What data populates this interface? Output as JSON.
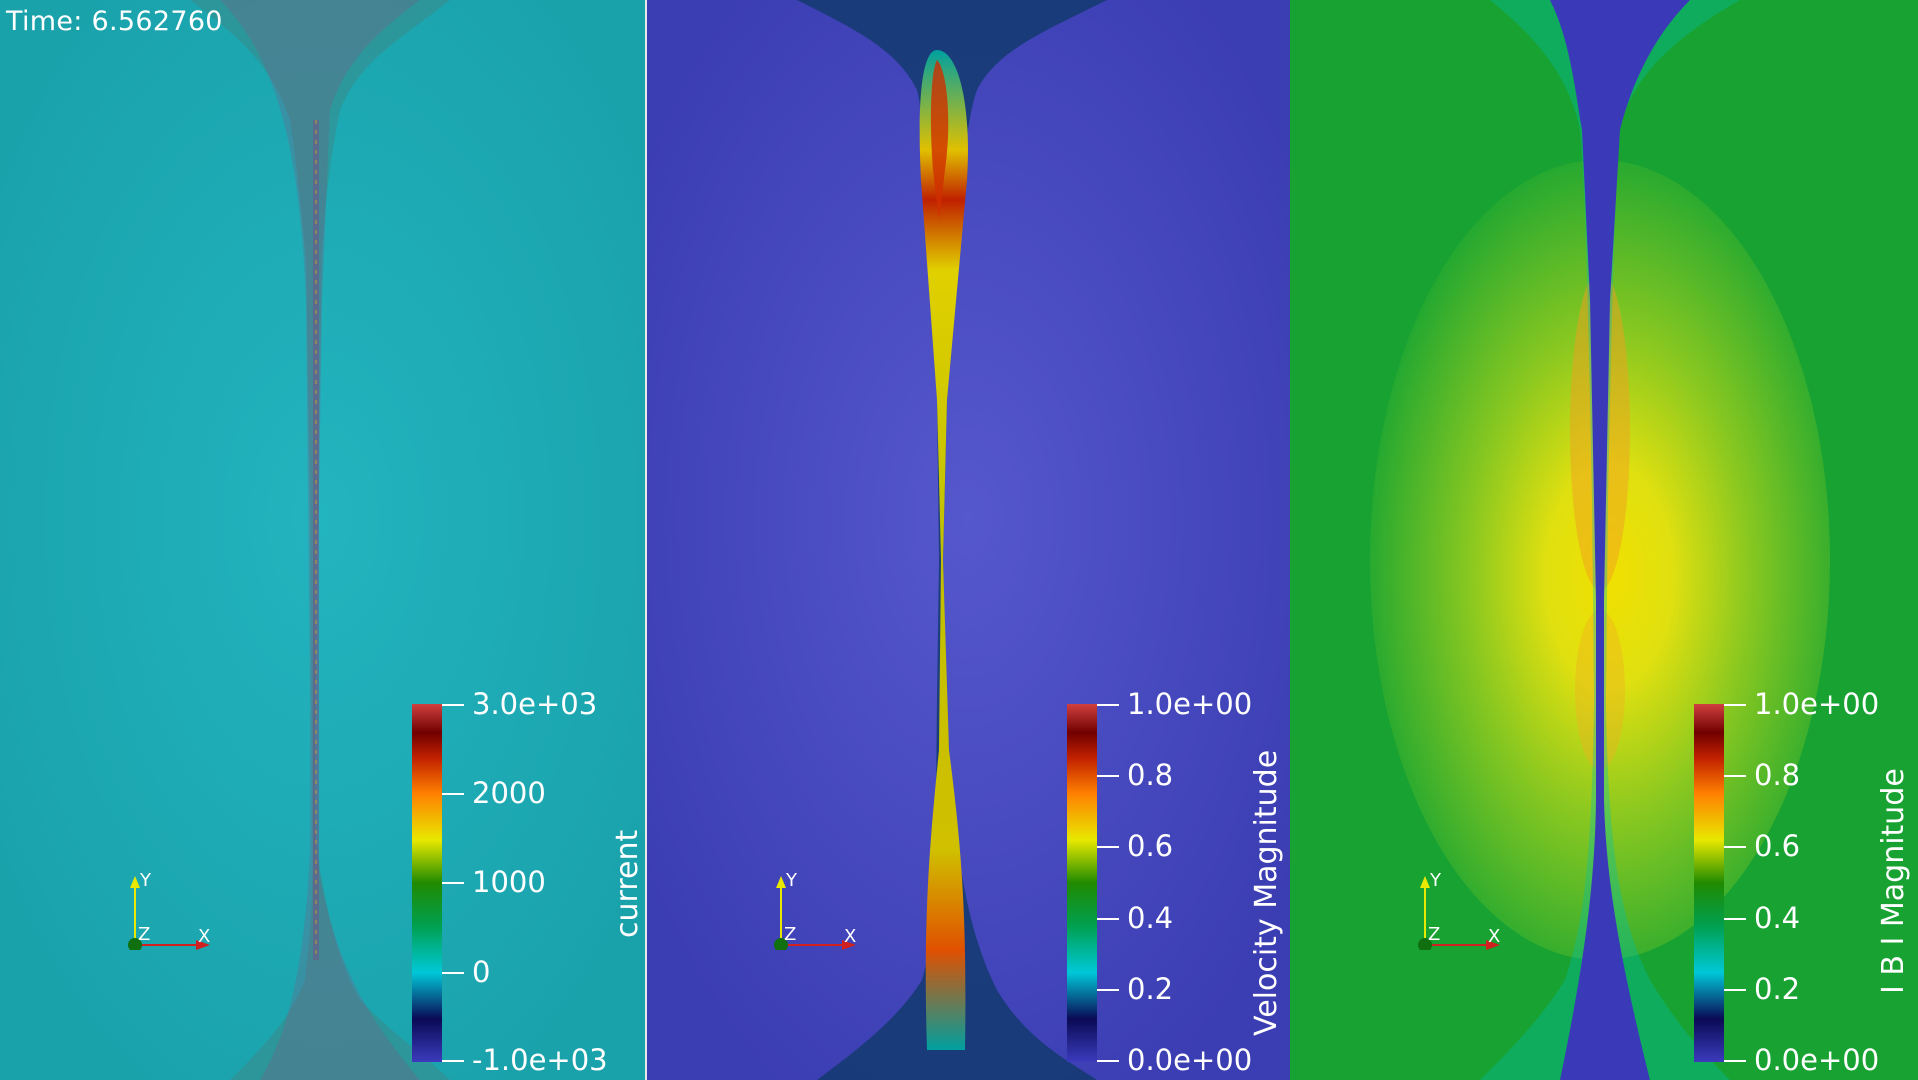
{
  "time_label": "Time: 6.562760",
  "panels": [
    {
      "id": "current",
      "background": "#1fa9b2",
      "colorbar": {
        "title": "current",
        "ticks": [
          "3.0e+03",
          "2000",
          "1000",
          "0",
          "-1.0e+03"
        ]
      },
      "axes": {
        "y": "Y",
        "z": "Z",
        "x": "X"
      }
    },
    {
      "id": "velocity",
      "background": "#3f43b8",
      "colorbar": {
        "title": "Velocity Magnitude",
        "ticks": [
          "1.0e+00",
          "0.8",
          "0.6",
          "0.4",
          "0.2",
          "0.0e+00"
        ]
      },
      "axes": {
        "y": "Y",
        "z": "Z",
        "x": "X"
      }
    },
    {
      "id": "bfield",
      "background": "#19a632",
      "colorbar": {
        "title": "I B I Magnitude",
        "ticks": [
          "1.0e+00",
          "0.8",
          "0.6",
          "0.4",
          "0.2",
          "0.0e+00"
        ]
      },
      "axes": {
        "y": "Y",
        "z": "Z",
        "x": "X"
      }
    }
  ],
  "colormap": [
    "#3b3bbd",
    "#0a0a55",
    "#00c8d8",
    "#00a050",
    "#208a00",
    "#e8e800",
    "#ff8000",
    "#c02000",
    "#700000",
    "#d04040"
  ]
}
